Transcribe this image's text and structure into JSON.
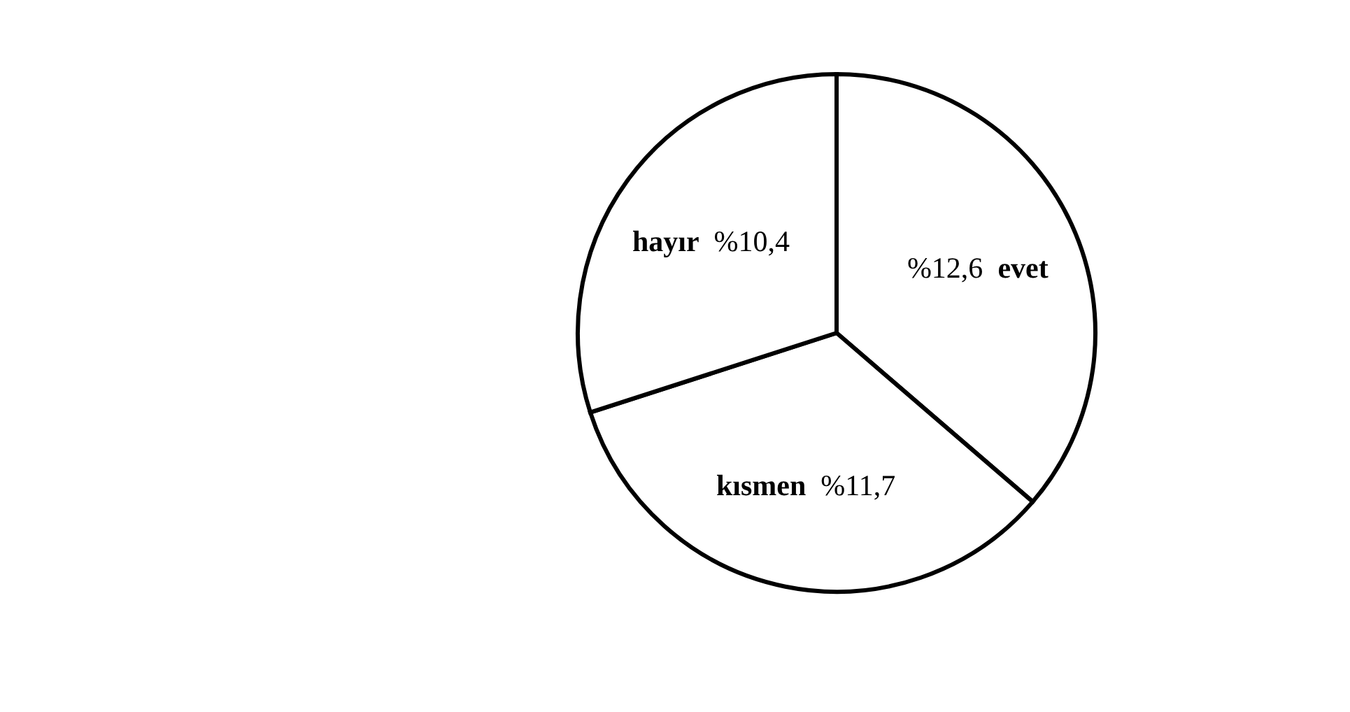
{
  "chart_data": {
    "type": "pie",
    "categories": [
      "evet",
      "kısmen",
      "hayır"
    ],
    "values": [
      12.6,
      11.7,
      10.4
    ],
    "value_labels": [
      "%12,6",
      "%11,7",
      "%10,4"
    ],
    "colors": [
      "#ffffff",
      "#ffffff",
      "#ffffff"
    ],
    "legend": false
  }
}
